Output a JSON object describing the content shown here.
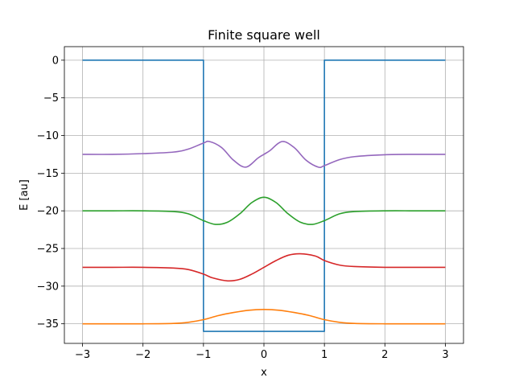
{
  "chart_data": {
    "type": "line",
    "title": "Finite square well",
    "xlabel": "x",
    "ylabel": "E [au]",
    "xlim": [
      -3.3,
      3.3
    ],
    "ylim": [
      -37.6,
      1.8
    ],
    "xticks": [
      -3,
      -2,
      -1,
      0,
      1,
      2,
      3
    ],
    "xtick_labels": [
      "−3",
      "−2",
      "−1",
      "0",
      "1",
      "2",
      "3"
    ],
    "yticks": [
      0,
      -5,
      -10,
      -15,
      -20,
      -25,
      -30,
      -35
    ],
    "ytick_labels": [
      "0",
      "−5",
      "−10",
      "−15",
      "−20",
      "−25",
      "−30",
      "−35"
    ],
    "grid": true,
    "series": [
      {
        "color": "#1f77b4",
        "x": [
          -3,
          -1,
          -1,
          1,
          1,
          3
        ],
        "y": [
          0,
          0,
          -36,
          -36,
          0,
          0
        ]
      },
      {
        "color": "#ff7f0e",
        "x": [
          -3,
          -2.5,
          -2,
          -1.5,
          -1.25,
          -1,
          -0.75,
          -0.5,
          -0.25,
          0,
          0.25,
          0.5,
          0.75,
          1,
          1.25,
          1.5,
          2,
          2.5,
          3
        ],
        "y": [
          -35.0,
          -35.0,
          -35.0,
          -34.95,
          -34.8,
          -34.45,
          -33.9,
          -33.5,
          -33.2,
          -33.1,
          -33.2,
          -33.5,
          -33.9,
          -34.45,
          -34.8,
          -34.95,
          -35.0,
          -35.0,
          -35.0
        ]
      },
      {
        "color": "#d62728",
        "x": [
          -3,
          -2.5,
          -2,
          -1.5,
          -1.25,
          -1,
          -0.85,
          -0.6,
          -0.4,
          -0.2,
          0,
          0.2,
          0.4,
          0.6,
          0.85,
          1,
          1.25,
          1.5,
          2,
          2.5,
          3
        ],
        "y": [
          -27.5,
          -27.5,
          -27.5,
          -27.6,
          -27.8,
          -28.4,
          -28.9,
          -29.3,
          -29.1,
          -28.4,
          -27.5,
          -26.6,
          -25.9,
          -25.7,
          -26.0,
          -26.6,
          -27.2,
          -27.4,
          -27.5,
          -27.5,
          -27.5
        ]
      },
      {
        "color": "#2ca02c",
        "x": [
          -3,
          -2.5,
          -2,
          -1.5,
          -1.25,
          -1,
          -0.8,
          -0.6,
          -0.4,
          -0.2,
          0,
          0.2,
          0.4,
          0.6,
          0.8,
          1,
          1.25,
          1.5,
          2,
          2.5,
          3
        ],
        "y": [
          -20.0,
          -20.0,
          -20.0,
          -20.1,
          -20.4,
          -21.3,
          -21.8,
          -21.5,
          -20.4,
          -18.9,
          -18.2,
          -18.9,
          -20.4,
          -21.5,
          -21.8,
          -21.3,
          -20.4,
          -20.1,
          -20.0,
          -20.0,
          -20.0
        ]
      },
      {
        "color": "#9467bd",
        "x": [
          -3,
          -2.5,
          -2,
          -1.5,
          -1.25,
          -1,
          -0.9,
          -0.7,
          -0.5,
          -0.3,
          -0.1,
          0,
          0.1,
          0.3,
          0.5,
          0.7,
          0.9,
          1,
          1.25,
          1.5,
          2,
          2.5,
          3
        ],
        "y": [
          -12.5,
          -12.5,
          -12.4,
          -12.2,
          -11.8,
          -11.0,
          -10.8,
          -11.6,
          -13.3,
          -14.2,
          -13.0,
          -12.5,
          -12.0,
          -10.8,
          -11.6,
          -13.3,
          -14.2,
          -14.0,
          -13.2,
          -12.8,
          -12.55,
          -12.5,
          -12.5
        ]
      }
    ]
  }
}
